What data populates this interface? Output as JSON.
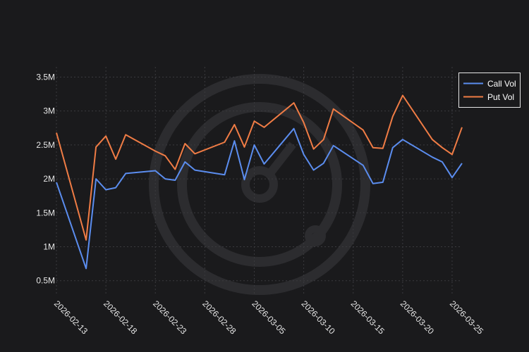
{
  "chart_data": {
    "type": "line",
    "title": "",
    "xlabel": "",
    "ylabel": "",
    "x": [
      "2026-02-13",
      "2026-02-16",
      "2026-02-17",
      "2026-02-18",
      "2026-02-19",
      "2026-02-20",
      "2026-02-23",
      "2026-02-24",
      "2026-02-25",
      "2026-02-26",
      "2026-02-27",
      "2026-03-02",
      "2026-03-03",
      "2026-03-04",
      "2026-03-05",
      "2026-03-06",
      "2026-03-09",
      "2026-03-10",
      "2026-03-11",
      "2026-03-12",
      "2026-03-13",
      "2026-03-16",
      "2026-03-17",
      "2026-03-18",
      "2026-03-19",
      "2026-03-20",
      "2026-03-23",
      "2026-03-24",
      "2026-03-25",
      "2026-03-26"
    ],
    "x_ticks": [
      "2026-02-13",
      "2026-02-18",
      "2026-02-23",
      "2026-02-28",
      "2026-03-05",
      "2026-03-10",
      "2026-03-15",
      "2026-03-20",
      "2026-03-25"
    ],
    "y_ticks": [
      {
        "value": 500000,
        "label": "0.5M"
      },
      {
        "value": 1000000,
        "label": "1M"
      },
      {
        "value": 1500000,
        "label": "1.5M"
      },
      {
        "value": 2000000,
        "label": "2M"
      },
      {
        "value": 2500000,
        "label": "2.5M"
      },
      {
        "value": 3000000,
        "label": "3M"
      },
      {
        "value": 3500000,
        "label": "3.5M"
      }
    ],
    "ylim": [
      300000,
      3650000
    ],
    "xlim": [
      "2026-02-13",
      "2026-03-26"
    ],
    "legend_position": "top-right",
    "series": [
      {
        "name": "Call Vol",
        "color": "#5b8def",
        "values": [
          1950000,
          680000,
          2000000,
          1840000,
          1870000,
          2080000,
          2120000,
          2000000,
          1980000,
          2250000,
          2130000,
          2060000,
          2560000,
          1990000,
          2500000,
          2220000,
          2740000,
          2360000,
          2130000,
          2230000,
          2490000,
          2200000,
          1930000,
          1950000,
          2460000,
          2580000,
          2320000,
          2250000,
          2020000,
          2230000
        ]
      },
      {
        "name": "Put Vol",
        "color": "#f07c45",
        "values": [
          2680000,
          1100000,
          2470000,
          2630000,
          2290000,
          2650000,
          2410000,
          2340000,
          2140000,
          2520000,
          2370000,
          2540000,
          2800000,
          2470000,
          2850000,
          2760000,
          3120000,
          2830000,
          2440000,
          2580000,
          3030000,
          2720000,
          2460000,
          2450000,
          2920000,
          3230000,
          2580000,
          2460000,
          2360000,
          2760000
        ]
      }
    ]
  }
}
